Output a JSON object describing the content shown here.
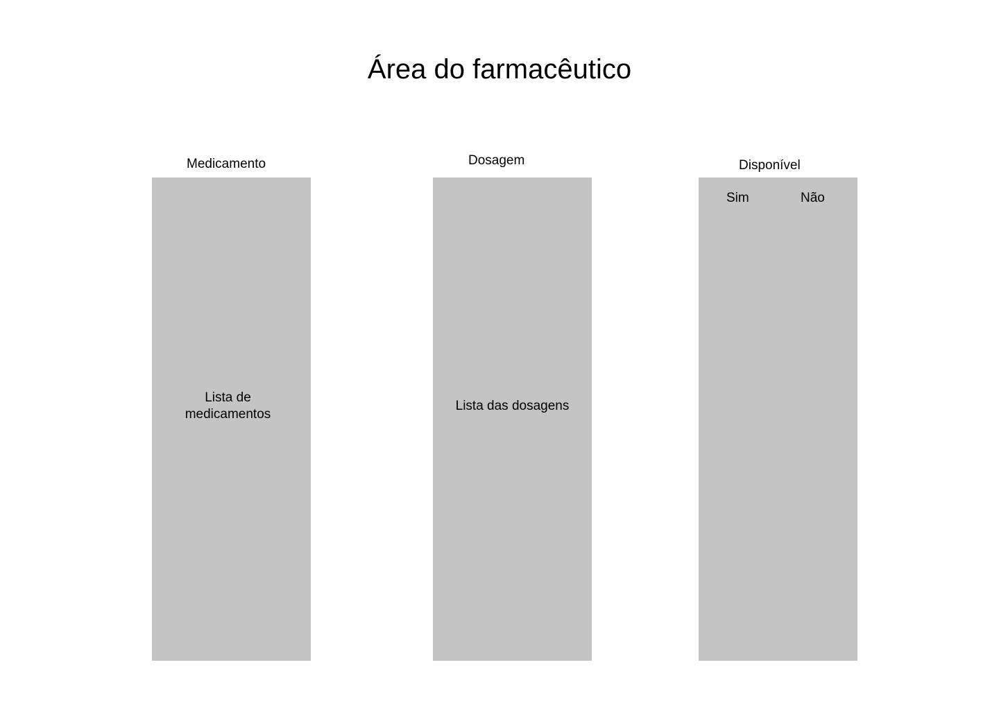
{
  "page": {
    "title": "Área do farmacêutico"
  },
  "columns": {
    "medicamento": {
      "label": "Medicamento",
      "placeholder_line1": "Lista de",
      "placeholder_line2": "medicamentos"
    },
    "dosagem": {
      "label": "Dosagem",
      "placeholder": "Lista das dosagens"
    },
    "disponivel": {
      "label": "Disponível",
      "options": [
        "Sim",
        "Não"
      ]
    }
  },
  "colors": {
    "background": "#ffffff",
    "panel": "#c4c4c4",
    "text": "#000000"
  }
}
